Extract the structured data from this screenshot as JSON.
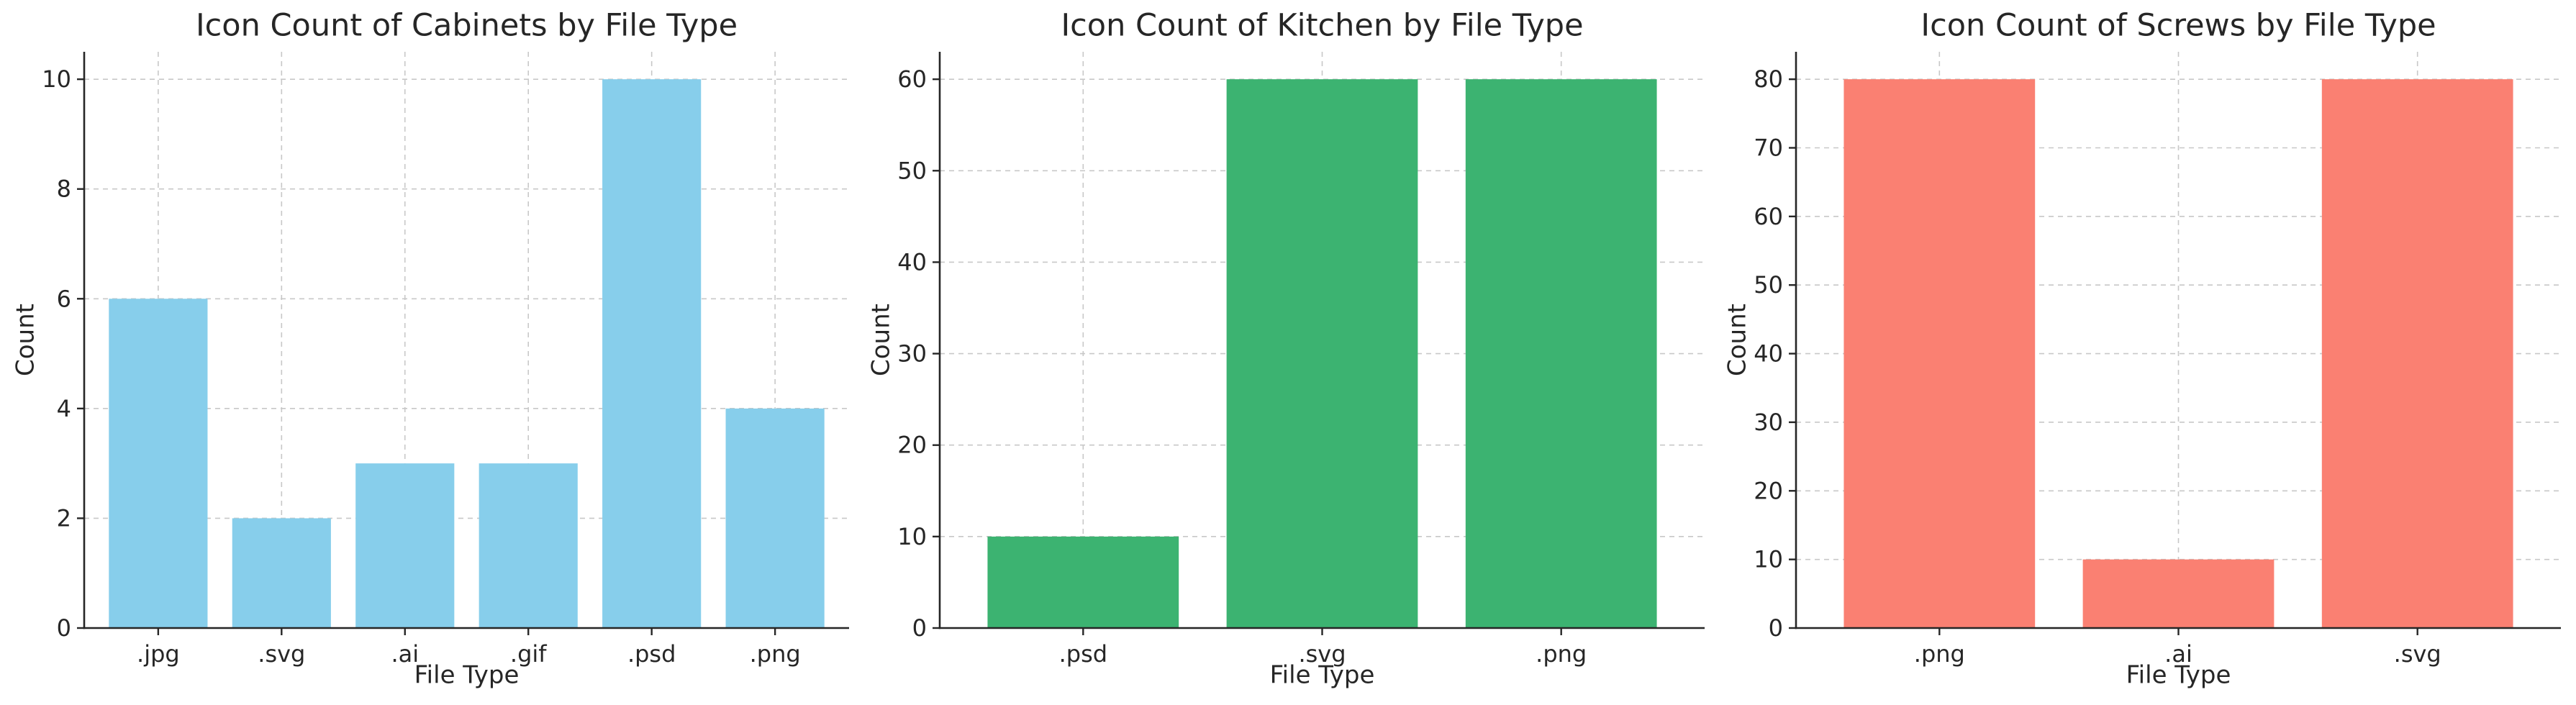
{
  "chart_data": [
    {
      "type": "bar",
      "title": "Icon Count of Cabinets by File Type",
      "xlabel": "File Type",
      "ylabel": "Count",
      "categories": [
        ".jpg",
        ".svg",
        ".ai",
        ".gif",
        ".psd",
        ".png"
      ],
      "values": [
        6,
        2,
        3,
        3,
        10,
        4
      ],
      "ylim": [
        0,
        10.5
      ],
      "yticks": [
        0,
        2,
        4,
        6,
        8,
        10
      ],
      "color": "#87CEEB",
      "grid": true
    },
    {
      "type": "bar",
      "title": "Icon Count of Kitchen by File Type",
      "xlabel": "File Type",
      "ylabel": "Count",
      "categories": [
        ".psd",
        ".svg",
        ".png"
      ],
      "values": [
        10,
        60,
        60
      ],
      "ylim": [
        0,
        63
      ],
      "yticks": [
        0,
        10,
        20,
        30,
        40,
        50,
        60
      ],
      "color": "#3CB371",
      "grid": true
    },
    {
      "type": "bar",
      "title": "Icon Count of Screws by File Type",
      "xlabel": "File Type",
      "ylabel": "Count",
      "categories": [
        ".png",
        ".ai",
        ".svg"
      ],
      "values": [
        80,
        10,
        80
      ],
      "ylim": [
        0,
        84
      ],
      "yticks": [
        0,
        10,
        20,
        30,
        40,
        50,
        60,
        70,
        80
      ],
      "color": "#FA8072",
      "grid": true
    }
  ]
}
